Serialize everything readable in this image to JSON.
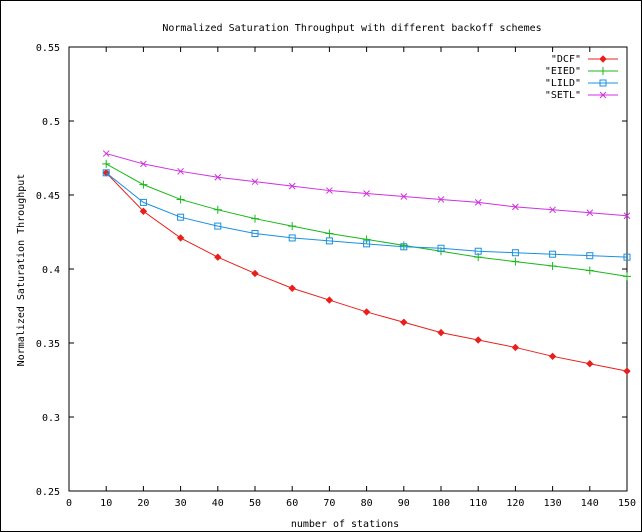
{
  "chart_data": {
    "type": "line",
    "title": "Normalized Saturation Throughput with different backoff schemes",
    "xlabel": "number of stations",
    "ylabel": "Normalized Saturation Throughput",
    "xlim": [
      0,
      150
    ],
    "ylim": [
      0.25,
      0.55
    ],
    "x_ticks": [
      "0",
      "10",
      "20",
      "30",
      "40",
      "50",
      "60",
      "70",
      "80",
      "90",
      "100",
      "110",
      "120",
      "130",
      "140",
      "150"
    ],
    "y_ticks": [
      "0.25",
      "0.3",
      "0.35",
      "0.4",
      "0.45",
      "0.5",
      "0.55"
    ],
    "grid": false,
    "legend_position": "top-right",
    "x": [
      10,
      20,
      30,
      40,
      50,
      60,
      70,
      80,
      90,
      100,
      110,
      120,
      130,
      140,
      150
    ],
    "series": [
      {
        "name": "\"DCF\"",
        "color": "#e8201c",
        "marker": "diamond",
        "values": [
          0.465,
          0.439,
          0.421,
          0.408,
          0.397,
          0.387,
          0.379,
          0.371,
          0.364,
          0.357,
          0.352,
          0.347,
          0.341,
          0.336,
          0.331
        ]
      },
      {
        "name": "\"EIED\"",
        "color": "#18b818",
        "marker": "plus",
        "values": [
          0.471,
          0.457,
          0.447,
          0.44,
          0.434,
          0.429,
          0.424,
          0.42,
          0.416,
          0.412,
          0.408,
          0.405,
          0.402,
          0.399,
          0.395
        ]
      },
      {
        "name": "\"LILD\"",
        "color": "#1a90e0",
        "marker": "square",
        "values": [
          0.465,
          0.445,
          0.435,
          0.429,
          0.424,
          0.421,
          0.419,
          0.417,
          0.415,
          0.414,
          0.412,
          0.411,
          0.41,
          0.409,
          0.408
        ]
      },
      {
        "name": "\"SETL\"",
        "color": "#d030e0",
        "marker": "x",
        "values": [
          0.478,
          0.471,
          0.466,
          0.462,
          0.459,
          0.456,
          0.453,
          0.451,
          0.449,
          0.447,
          0.445,
          0.442,
          0.44,
          0.438,
          0.436
        ]
      }
    ]
  }
}
